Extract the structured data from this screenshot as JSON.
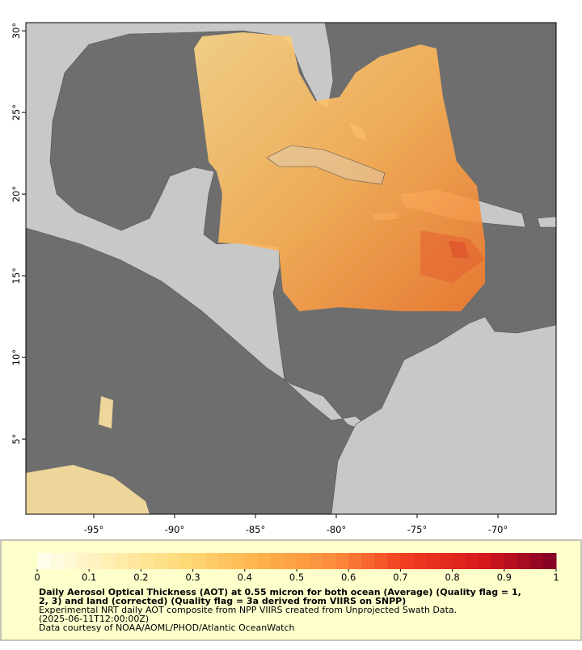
{
  "map": {
    "xlim": [
      -99.2,
      -66.4
    ],
    "ylim": [
      0.4,
      30.5
    ],
    "xticks": [
      {
        "value": -95,
        "label": "-95°"
      },
      {
        "value": -90,
        "label": "-90°"
      },
      {
        "value": -85,
        "label": "-85°"
      },
      {
        "value": -80,
        "label": "-80°"
      },
      {
        "value": -75,
        "label": "-75°"
      },
      {
        "value": -70,
        "label": "-70°"
      }
    ],
    "yticks": [
      {
        "value": 5,
        "label": "5°"
      },
      {
        "value": 10,
        "label": "10°"
      },
      {
        "value": 15,
        "label": "15°"
      },
      {
        "value": 20,
        "label": "20°"
      },
      {
        "value": 25,
        "label": "25°"
      },
      {
        "value": 30,
        "label": "30°"
      }
    ]
  },
  "colorbar": {
    "lim": [
      0,
      1
    ],
    "ticks": [
      0,
      0.1,
      0.2,
      0.3,
      0.4,
      0.5,
      0.6,
      0.7,
      0.8,
      0.9,
      1
    ],
    "colors": [
      "#fffff0",
      "#ffeeb0",
      "#fed976",
      "#feb24c",
      "#fd8d3c",
      "#f03b20",
      "#d7191c",
      "#800026"
    ]
  },
  "caption": {
    "title_lines": [
      "Daily Aerosol Optical Thickness (AOT) at 0.55 micron for both ocean (Average) (Quality flag = 1,",
      "2, 3) and land (corrected) (Quality flag = 3a derived from VIIRS on SNPP)"
    ],
    "lines": [
      "Experimental NRT daily AOT composite from NPP VIIRS created from Unprojected Swath Data.",
      "(2025-06-11T12:00:00Z)",
      "Data courtesy of NOAA/AOML/PHOD/Atlantic OceanWatch"
    ]
  }
}
